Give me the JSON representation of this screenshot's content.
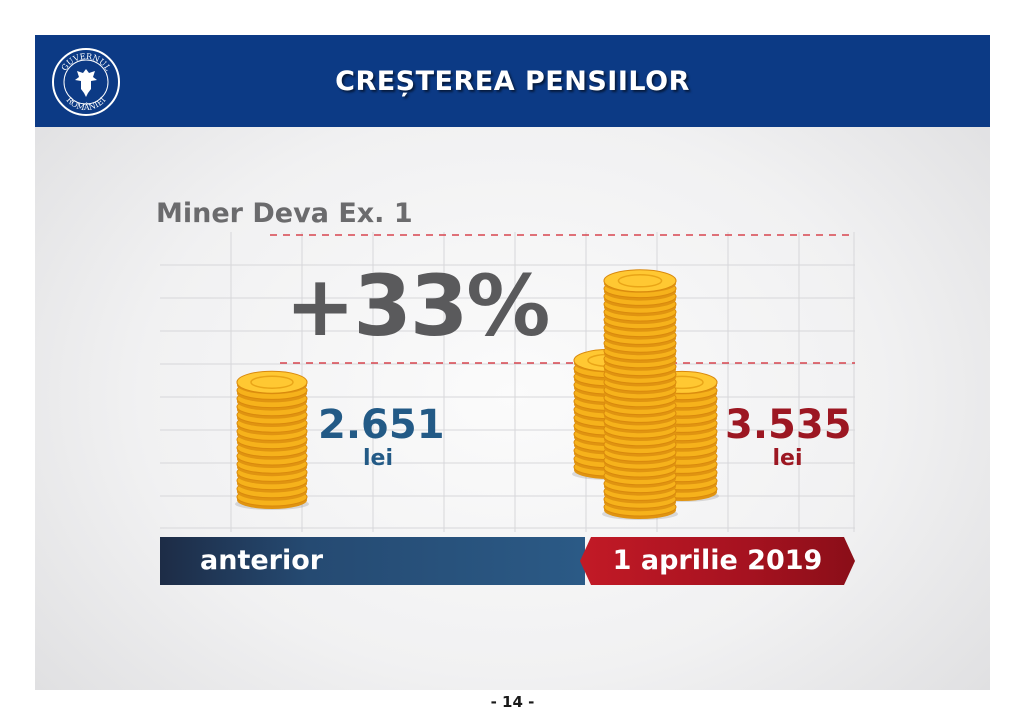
{
  "header": {
    "title": "CREȘTEREA PENSIILOR",
    "logo_text_top": "GUVERNUL",
    "logo_text_bottom": "ROMÂNIEI"
  },
  "subtitle": "Miner Deva Ex. 1",
  "increase": "+33%",
  "before": {
    "value": "2.651",
    "unit": "lei",
    "label": "anterior"
  },
  "after": {
    "value": "3.535",
    "unit": "lei",
    "label": "1 aprilie 2019"
  },
  "page_number": "- 14 -",
  "colors": {
    "header": "#0c3a85",
    "before": "#235a86",
    "after": "#9c1722",
    "coin": "#f6b21b"
  },
  "icons": [
    "government-crest-icon",
    "coin-stack-icon"
  ]
}
